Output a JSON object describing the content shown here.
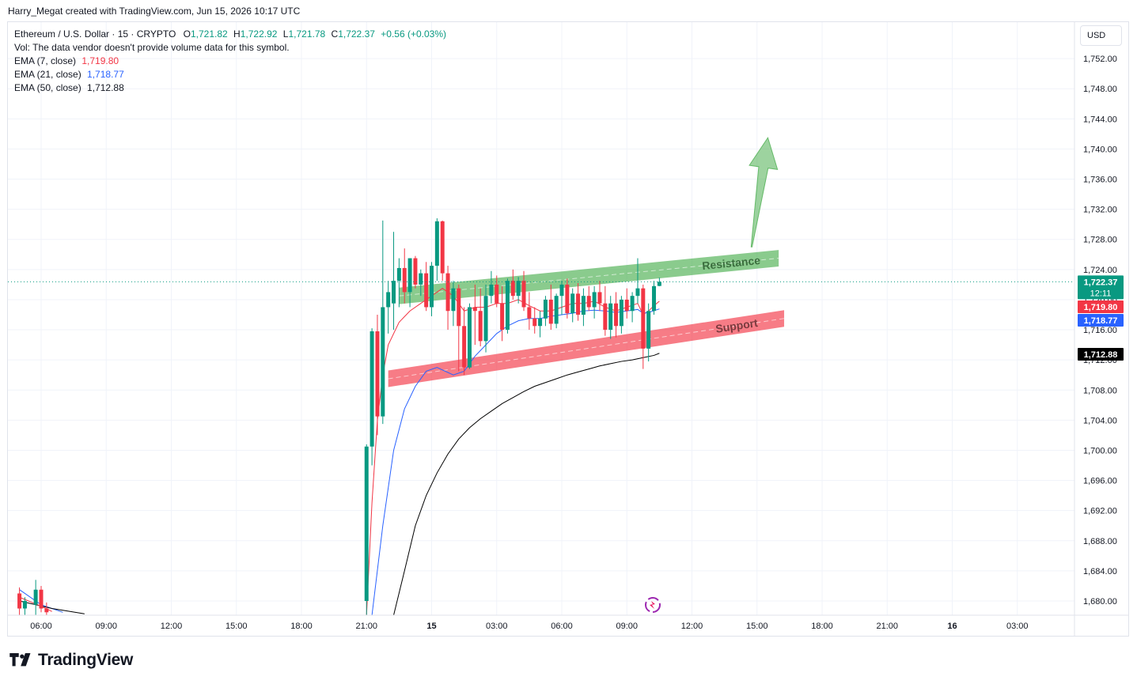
{
  "header": {
    "attribution": "Harry_Megat created with TradingView.com, Jun 15, 2026 10:17 UTC"
  },
  "legend": {
    "symbol": "Ethereum / U.S. Dollar · 15 · CRYPTO",
    "open_label": "O",
    "open": "1,721.82",
    "high_label": "H",
    "high": "1,722.92",
    "low_label": "L",
    "low": "1,721.78",
    "close_label": "C",
    "close": "1,722.37",
    "change": "+0.56 (+0.03%)",
    "vol_note": "Vol: The data vendor doesn't provide volume data for this symbol.",
    "ema7_label": "EMA (7, close)",
    "ema7_value": "1,719.80",
    "ema21_label": "EMA (21, close)",
    "ema21_value": "1,718.77",
    "ema50_label": "EMA (50, close)",
    "ema50_value": "1,712.88"
  },
  "currency_button": "USD",
  "footer": {
    "brand": "TradingView"
  },
  "colors": {
    "up": "#089981",
    "down": "#f23645",
    "ema7": "#f23645",
    "ema21": "#2962ff",
    "ema50": "#000000",
    "resistance": "#4caf50",
    "support": "#f23645",
    "grid": "#f0f3fa"
  },
  "chart_data": {
    "type": "candlestick",
    "symbol": "ETHUSD",
    "interval": "15",
    "ylim": [
      1678,
      1754
    ],
    "y_ticks": [
      1680,
      1684,
      1688,
      1692,
      1696,
      1700,
      1704,
      1708,
      1712,
      1716,
      1720,
      1724,
      1728,
      1732,
      1736,
      1740,
      1744,
      1748,
      1752
    ],
    "y_tick_labels": [
      "1,680.00",
      "1,684.00",
      "1,688.00",
      "1,692.00",
      "1,696.00",
      "1,700.00",
      "1,704.00",
      "1,708.00",
      "1,712.00",
      "1,716.00",
      "1,720.00",
      "1,724.00",
      "1,728.00",
      "1,732.00",
      "1,736.00",
      "1,740.00",
      "1,744.00",
      "1,748.00",
      "1,752.00"
    ],
    "x_ticks": [
      "06:00",
      "09:00",
      "12:00",
      "15:00",
      "18:00",
      "21:00",
      "15",
      "03:00",
      "06:00",
      "09:00",
      "12:00",
      "15:00",
      "18:00",
      "21:00",
      "16",
      "03:00"
    ],
    "x_tick_hours": [
      6,
      9,
      12,
      15,
      18,
      21,
      24,
      27,
      30,
      33,
      36,
      39,
      42,
      45,
      48,
      51
    ],
    "current_price": {
      "value": 1722.37,
      "label": "1,722.37",
      "countdown": "12:11"
    },
    "price_tags": [
      {
        "name": "EMA 7",
        "value": 1719.8,
        "label": "1,719.80"
      },
      {
        "name": "EMA 21",
        "value": 1718.77,
        "label": "1,718.77"
      },
      {
        "name": "EMA 50",
        "value": 1712.88,
        "label": "1,712.88"
      }
    ],
    "candles": [
      {
        "t": 21.0,
        "o": 1680.0,
        "h": 1700.8,
        "l": 1676.0,
        "c": 1700.5
      },
      {
        "t": 21.25,
        "o": 1700.5,
        "h": 1716.2,
        "l": 1698.0,
        "c": 1715.8
      },
      {
        "t": 21.5,
        "o": 1715.8,
        "h": 1718.0,
        "l": 1702.0,
        "c": 1704.5
      },
      {
        "t": 21.75,
        "o": 1704.5,
        "h": 1730.5,
        "l": 1703.5,
        "c": 1719.0
      },
      {
        "t": 22.0,
        "o": 1719.0,
        "h": 1722.5,
        "l": 1715.5,
        "c": 1721.0
      },
      {
        "t": 22.25,
        "o": 1719.5,
        "h": 1729.0,
        "l": 1716.0,
        "c": 1722.5
      },
      {
        "t": 22.5,
        "o": 1722.5,
        "h": 1725.5,
        "l": 1719.0,
        "c": 1724.2
      },
      {
        "t": 22.75,
        "o": 1724.2,
        "h": 1726.8,
        "l": 1719.5,
        "c": 1721.0
      },
      {
        "t": 23.0,
        "o": 1721.0,
        "h": 1725.5,
        "l": 1719.0,
        "c": 1725.5
      },
      {
        "t": 23.25,
        "o": 1725.5,
        "h": 1725.8,
        "l": 1721.5,
        "c": 1722.0
      },
      {
        "t": 23.5,
        "o": 1722.0,
        "h": 1724.0,
        "l": 1720.5,
        "c": 1723.5
      },
      {
        "t": 23.75,
        "o": 1723.5,
        "h": 1725.0,
        "l": 1718.5,
        "c": 1719.0
      },
      {
        "t": 24.0,
        "o": 1719.0,
        "h": 1725.0,
        "l": 1717.8,
        "c": 1724.5
      },
      {
        "t": 24.25,
        "o": 1724.5,
        "h": 1730.8,
        "l": 1722.5,
        "c": 1730.4
      },
      {
        "t": 24.5,
        "o": 1730.4,
        "h": 1730.5,
        "l": 1722.5,
        "c": 1723.5
      },
      {
        "t": 24.75,
        "o": 1723.5,
        "h": 1724.5,
        "l": 1716.0,
        "c": 1718.5
      },
      {
        "t": 25.0,
        "o": 1718.5,
        "h": 1722.5,
        "l": 1716.5,
        "c": 1721.5
      },
      {
        "t": 25.25,
        "o": 1721.5,
        "h": 1722.0,
        "l": 1710.5,
        "c": 1716.5
      },
      {
        "t": 25.5,
        "o": 1716.5,
        "h": 1719.0,
        "l": 1710.0,
        "c": 1711.0
      },
      {
        "t": 25.75,
        "o": 1711.0,
        "h": 1719.5,
        "l": 1710.8,
        "c": 1719.0
      },
      {
        "t": 26.0,
        "o": 1719.0,
        "h": 1722.0,
        "l": 1714.0,
        "c": 1718.5
      },
      {
        "t": 26.25,
        "o": 1718.5,
        "h": 1721.5,
        "l": 1713.8,
        "c": 1714.5
      },
      {
        "t": 26.5,
        "o": 1714.5,
        "h": 1722.0,
        "l": 1713.0,
        "c": 1720.5
      },
      {
        "t": 26.75,
        "o": 1720.5,
        "h": 1723.8,
        "l": 1719.5,
        "c": 1722.0
      },
      {
        "t": 27.0,
        "o": 1722.0,
        "h": 1723.2,
        "l": 1719.0,
        "c": 1719.5
      },
      {
        "t": 27.25,
        "o": 1719.5,
        "h": 1721.8,
        "l": 1714.5,
        "c": 1716.0
      },
      {
        "t": 27.5,
        "o": 1716.0,
        "h": 1722.8,
        "l": 1715.5,
        "c": 1722.5
      },
      {
        "t": 27.75,
        "o": 1722.5,
        "h": 1724.0,
        "l": 1720.0,
        "c": 1720.5
      },
      {
        "t": 28.0,
        "o": 1720.5,
        "h": 1723.0,
        "l": 1719.5,
        "c": 1722.5
      },
      {
        "t": 28.25,
        "o": 1722.5,
        "h": 1723.8,
        "l": 1718.5,
        "c": 1719.0
      },
      {
        "t": 28.5,
        "o": 1719.0,
        "h": 1721.0,
        "l": 1716.0,
        "c": 1717.5
      },
      {
        "t": 28.75,
        "o": 1717.5,
        "h": 1719.0,
        "l": 1715.5,
        "c": 1716.5
      },
      {
        "t": 29.0,
        "o": 1716.5,
        "h": 1718.5,
        "l": 1715.0,
        "c": 1717.5
      },
      {
        "t": 29.25,
        "o": 1717.5,
        "h": 1720.5,
        "l": 1716.5,
        "c": 1720.0
      },
      {
        "t": 29.5,
        "o": 1720.0,
        "h": 1722.0,
        "l": 1716.0,
        "c": 1716.8
      },
      {
        "t": 29.75,
        "o": 1716.8,
        "h": 1720.8,
        "l": 1716.2,
        "c": 1720.5
      },
      {
        "t": 30.0,
        "o": 1720.5,
        "h": 1722.5,
        "l": 1718.0,
        "c": 1722.0
      },
      {
        "t": 30.25,
        "o": 1722.0,
        "h": 1722.8,
        "l": 1717.5,
        "c": 1718.2
      },
      {
        "t": 30.5,
        "o": 1718.2,
        "h": 1721.5,
        "l": 1717.0,
        "c": 1720.8
      },
      {
        "t": 30.75,
        "o": 1720.8,
        "h": 1722.2,
        "l": 1717.2,
        "c": 1718.0
      },
      {
        "t": 31.0,
        "o": 1718.0,
        "h": 1721.5,
        "l": 1716.5,
        "c": 1720.5
      },
      {
        "t": 31.25,
        "o": 1720.5,
        "h": 1721.8,
        "l": 1718.5,
        "c": 1719.0
      },
      {
        "t": 31.5,
        "o": 1719.0,
        "h": 1721.8,
        "l": 1717.5,
        "c": 1721.0
      },
      {
        "t": 31.75,
        "o": 1721.0,
        "h": 1722.5,
        "l": 1718.5,
        "c": 1719.5
      },
      {
        "t": 32.0,
        "o": 1719.5,
        "h": 1721.8,
        "l": 1715.2,
        "c": 1716.0
      },
      {
        "t": 32.25,
        "o": 1716.0,
        "h": 1720.5,
        "l": 1714.8,
        "c": 1719.5
      },
      {
        "t": 32.5,
        "o": 1719.5,
        "h": 1721.0,
        "l": 1715.0,
        "c": 1716.5
      },
      {
        "t": 32.75,
        "o": 1716.5,
        "h": 1720.5,
        "l": 1715.5,
        "c": 1720.0
      },
      {
        "t": 33.0,
        "o": 1720.0,
        "h": 1721.5,
        "l": 1717.5,
        "c": 1718.5
      },
      {
        "t": 33.25,
        "o": 1718.5,
        "h": 1721.0,
        "l": 1717.0,
        "c": 1720.5
      },
      {
        "t": 33.5,
        "o": 1720.5,
        "h": 1725.5,
        "l": 1719.5,
        "c": 1721.5
      },
      {
        "t": 33.75,
        "o": 1721.5,
        "h": 1722.0,
        "l": 1710.8,
        "c": 1713.5
      },
      {
        "t": 34.0,
        "o": 1713.5,
        "h": 1719.5,
        "l": 1711.8,
        "c": 1718.5
      },
      {
        "t": 34.25,
        "o": 1718.5,
        "h": 1722.5,
        "l": 1718.0,
        "c": 1721.8
      },
      {
        "t": 34.5,
        "o": 1721.82,
        "h": 1722.92,
        "l": 1721.78,
        "c": 1722.37
      }
    ],
    "ema": [
      {
        "name": "EMA (7, close)",
        "color": "#f23645",
        "points": [
          [
            21.0,
            1676.0
          ],
          [
            21.25,
            1693.0
          ],
          [
            21.5,
            1704.0
          ],
          [
            21.75,
            1710.0
          ],
          [
            22.0,
            1714.0
          ],
          [
            22.5,
            1717.0
          ],
          [
            23.0,
            1718.5
          ],
          [
            23.5,
            1719.5
          ],
          [
            24.0,
            1720.5
          ],
          [
            24.5,
            1721.5
          ],
          [
            25.0,
            1720.5
          ],
          [
            25.5,
            1718.5
          ],
          [
            26.0,
            1719.0
          ],
          [
            26.5,
            1719.0
          ],
          [
            27.0,
            1719.5
          ],
          [
            27.5,
            1719.5
          ],
          [
            28.0,
            1720.0
          ],
          [
            28.5,
            1719.2
          ],
          [
            29.0,
            1718.5
          ],
          [
            29.5,
            1718.5
          ],
          [
            30.0,
            1719.0
          ],
          [
            30.5,
            1719.5
          ],
          [
            31.0,
            1719.5
          ],
          [
            31.5,
            1719.8
          ],
          [
            32.0,
            1719.0
          ],
          [
            32.5,
            1718.5
          ],
          [
            33.0,
            1719.0
          ],
          [
            33.5,
            1719.5
          ],
          [
            33.75,
            1718.0
          ],
          [
            34.0,
            1718.5
          ],
          [
            34.25,
            1719.2
          ],
          [
            34.5,
            1719.8
          ]
        ]
      },
      {
        "name": "EMA (21, close)",
        "color": "#2962ff",
        "points": [
          [
            21.25,
            1676.0
          ],
          [
            21.75,
            1690.0
          ],
          [
            22.25,
            1700.0
          ],
          [
            22.75,
            1705.5
          ],
          [
            23.25,
            1708.5
          ],
          [
            23.75,
            1710.5
          ],
          [
            24.25,
            1711.0
          ],
          [
            25.0,
            1710.0
          ],
          [
            25.5,
            1710.5
          ],
          [
            26.0,
            1712.5
          ],
          [
            26.5,
            1714.0
          ],
          [
            27.0,
            1715.5
          ],
          [
            27.5,
            1716.5
          ],
          [
            28.0,
            1717.2
          ],
          [
            28.5,
            1717.5
          ],
          [
            29.0,
            1717.5
          ],
          [
            29.5,
            1717.8
          ],
          [
            30.0,
            1718.0
          ],
          [
            30.5,
            1718.2
          ],
          [
            31.0,
            1718.5
          ],
          [
            31.5,
            1718.6
          ],
          [
            32.0,
            1718.5
          ],
          [
            32.5,
            1718.3
          ],
          [
            33.0,
            1718.5
          ],
          [
            33.5,
            1718.7
          ],
          [
            33.75,
            1718.2
          ],
          [
            34.0,
            1718.3
          ],
          [
            34.5,
            1718.77
          ]
        ]
      },
      {
        "name": "EMA (50, close)",
        "color": "#000000",
        "points": [
          [
            22.25,
            1678.0
          ],
          [
            22.75,
            1684.0
          ],
          [
            23.25,
            1690.0
          ],
          [
            23.75,
            1694.0
          ],
          [
            24.25,
            1697.0
          ],
          [
            24.75,
            1699.5
          ],
          [
            25.25,
            1701.5
          ],
          [
            25.75,
            1703.0
          ],
          [
            26.25,
            1704.2
          ],
          [
            26.75,
            1705.2
          ],
          [
            27.25,
            1706.2
          ],
          [
            27.75,
            1707.0
          ],
          [
            28.25,
            1707.8
          ],
          [
            28.75,
            1708.5
          ],
          [
            29.25,
            1709.0
          ],
          [
            29.75,
            1709.5
          ],
          [
            30.25,
            1710.0
          ],
          [
            30.75,
            1710.4
          ],
          [
            31.25,
            1710.8
          ],
          [
            31.75,
            1711.2
          ],
          [
            32.25,
            1711.5
          ],
          [
            32.75,
            1711.8
          ],
          [
            33.25,
            1712.0
          ],
          [
            33.75,
            1712.3
          ],
          [
            34.25,
            1712.6
          ],
          [
            34.5,
            1712.88
          ]
        ]
      }
    ],
    "prior_candles": [
      {
        "t": 5.0,
        "o": 1681.0,
        "h": 1681.8,
        "l": 1678.0,
        "c": 1679.0
      },
      {
        "t": 5.25,
        "o": 1679.0,
        "h": 1680.5,
        "l": 1678.0,
        "c": 1680.0
      },
      {
        "t": 5.75,
        "o": 1679.5,
        "h": 1682.8,
        "l": 1678.0,
        "c": 1681.5
      },
      {
        "t": 6.0,
        "o": 1681.5,
        "h": 1682.0,
        "l": 1678.5,
        "c": 1679.0
      },
      {
        "t": 6.25,
        "o": 1679.0,
        "h": 1679.8,
        "l": 1678.0,
        "c": 1678.5
      }
    ],
    "prior_lines": [
      {
        "color": "#2962ff",
        "points": [
          [
            5.0,
            1681.5
          ],
          [
            6.0,
            1679.5
          ],
          [
            7.0,
            1678.5
          ]
        ]
      },
      {
        "color": "#000000",
        "points": [
          [
            5.0,
            1680.0
          ],
          [
            6.5,
            1679.0
          ],
          [
            8.0,
            1678.3
          ]
        ]
      },
      {
        "color": "#f23645",
        "points": [
          [
            5.0,
            1680.5
          ],
          [
            6.0,
            1679.3
          ],
          [
            6.5,
            1678.6
          ]
        ]
      }
    ],
    "annotations": [
      {
        "type": "channel",
        "label": "Resistance",
        "color": "#4caf50",
        "from": {
          "t": 22.5,
          "price": 1720.5
        },
        "to": {
          "t": 40.0,
          "price": 1725.5
        },
        "thickness": 2.2
      },
      {
        "type": "channel",
        "label": "Support",
        "color": "#f23645",
        "from": {
          "t": 22.0,
          "price": 1709.5
        },
        "to": {
          "t": 40.25,
          "price": 1717.5
        },
        "thickness": 2.2
      },
      {
        "type": "arrow",
        "color": "#4caf50",
        "from": {
          "t": 38.75,
          "price": 1727.0
        },
        "to": {
          "t": 39.5,
          "price": 1741.5
        }
      }
    ]
  }
}
